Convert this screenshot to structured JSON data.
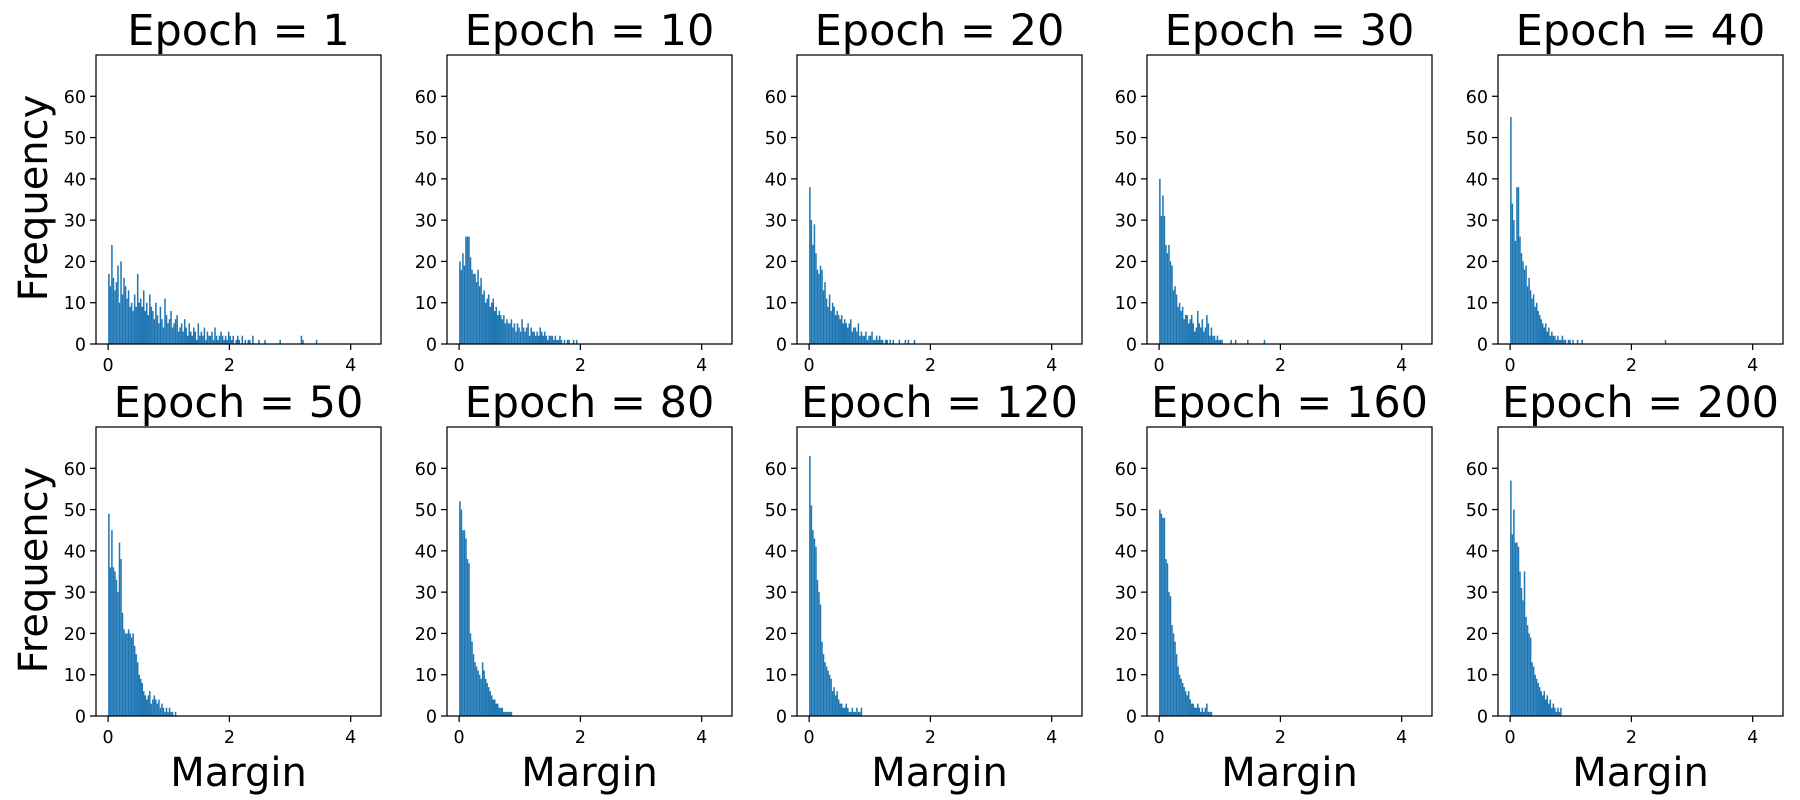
{
  "chart_data": {
    "type": "histogram-grid",
    "bar_color": "#1f77b4",
    "xlim": [
      -0.2,
      4.5
    ],
    "ylim": [
      0,
      70
    ],
    "xticks": [
      0,
      2,
      4
    ],
    "yticks": [
      0,
      10,
      20,
      30,
      40,
      50,
      60
    ],
    "ylabel": "Frequency",
    "xlabel": "Margin",
    "panels": [
      {
        "title": "Epoch = 1",
        "bins": {
          "start": 0.0,
          "width": 0.025
        },
        "values": [
          17,
          14,
          24,
          16,
          13,
          15,
          19,
          10,
          20,
          12,
          16,
          14,
          11,
          13,
          9,
          10,
          8,
          12,
          9,
          17,
          10,
          11,
          9,
          13,
          8,
          10,
          7,
          12,
          9,
          8,
          6,
          10,
          7,
          5,
          9,
          6,
          4,
          11,
          7,
          5,
          6,
          8,
          4,
          5,
          6,
          7,
          3,
          4,
          5,
          3,
          6,
          4,
          2,
          5,
          3,
          2,
          4,
          3,
          1,
          5,
          2,
          3,
          2,
          4,
          1,
          3,
          2,
          2,
          3,
          1,
          4,
          2,
          1,
          2,
          3,
          2,
          1,
          2,
          1,
          3,
          2,
          1,
          2,
          0,
          1,
          2,
          1,
          0,
          2,
          0,
          1,
          0,
          1,
          1,
          0,
          2,
          0,
          0,
          0,
          1,
          0,
          0,
          0,
          1,
          0,
          0,
          0,
          0,
          0,
          0,
          0,
          0,
          0,
          1,
          0,
          0,
          0,
          0,
          0,
          0,
          0,
          0,
          0,
          0,
          0,
          0,
          0,
          2,
          1,
          0,
          0,
          0,
          0,
          0,
          0,
          0,
          0,
          1,
          0,
          0,
          0
        ]
      },
      {
        "title": "Epoch = 10",
        "bins": {
          "start": 0.0,
          "width": 0.025
        },
        "values": [
          20,
          18,
          22,
          19,
          26,
          26,
          26,
          21,
          18,
          17,
          17,
          15,
          18,
          14,
          16,
          12,
          13,
          10,
          11,
          12,
          9,
          10,
          11,
          8,
          9,
          7,
          8,
          7,
          6,
          7,
          5,
          6,
          5,
          5,
          6,
          4,
          5,
          3,
          5,
          4,
          3,
          6,
          4,
          3,
          4,
          5,
          2,
          4,
          3,
          3,
          2,
          3,
          2,
          4,
          3,
          2,
          3,
          2,
          1,
          2,
          2,
          2,
          1,
          2,
          1,
          1,
          2,
          1,
          0,
          1,
          0,
          1,
          1,
          0,
          0,
          1,
          0,
          1
        ]
      },
      {
        "title": "Epoch = 20",
        "bins": {
          "start": 0.0,
          "width": 0.025
        },
        "values": [
          38,
          30,
          24,
          29,
          22,
          18,
          17,
          19,
          18,
          13,
          15,
          11,
          9,
          12,
          8,
          10,
          9,
          7,
          8,
          7,
          6,
          7,
          5,
          6,
          5,
          4,
          5,
          6,
          3,
          4,
          4,
          3,
          5,
          2,
          3,
          2,
          2,
          3,
          1,
          2,
          2,
          3,
          1,
          1,
          2,
          1,
          2,
          1,
          1,
          0,
          1,
          1,
          0,
          1,
          0,
          1,
          0,
          0,
          0,
          1,
          0,
          0,
          0,
          1,
          0,
          1,
          0,
          0,
          0,
          1
        ]
      },
      {
        "title": "Epoch = 30",
        "bins": {
          "start": 0.0,
          "width": 0.025
        },
        "values": [
          40,
          31,
          36,
          31,
          24,
          22,
          24,
          20,
          19,
          13,
          14,
          12,
          9,
          10,
          8,
          9,
          6,
          7,
          7,
          5,
          6,
          7,
          5,
          3,
          4,
          8,
          5,
          4,
          6,
          3,
          4,
          7,
          5,
          2,
          4,
          2,
          2,
          1,
          2,
          1,
          1,
          1,
          0,
          0,
          0,
          0,
          0,
          1,
          0,
          0,
          1,
          0,
          0,
          0,
          0,
          0,
          0,
          0,
          1,
          0,
          0,
          0,
          0,
          0,
          0,
          0,
          0,
          0,
          0,
          1
        ]
      },
      {
        "title": "Epoch = 40",
        "bins": {
          "start": 0.0,
          "width": 0.025
        },
        "values": [
          55,
          34,
          30,
          25,
          38,
          38,
          26,
          22,
          20,
          18,
          19,
          14,
          16,
          13,
          11,
          12,
          9,
          10,
          8,
          7,
          6,
          5,
          4,
          5,
          3,
          4,
          2,
          3,
          2,
          2,
          1,
          2,
          1,
          1,
          2,
          1,
          1,
          0,
          1,
          1,
          0,
          1,
          0,
          0,
          1,
          0,
          0,
          1,
          0,
          0,
          0,
          0,
          0,
          0,
          0,
          0,
          0,
          0,
          0,
          0,
          0,
          0,
          0,
          0,
          0,
          0,
          0,
          0,
          0,
          0,
          0,
          0,
          0,
          0,
          0,
          0,
          0,
          0,
          0,
          0,
          0,
          0,
          0,
          0,
          0,
          0,
          0,
          0,
          0,
          0,
          0,
          0,
          0,
          0,
          0,
          0,
          0,
          0,
          0,
          0,
          0,
          0,
          1
        ]
      },
      {
        "title": "Epoch = 50",
        "bins": {
          "start": 0.0,
          "width": 0.025
        },
        "values": [
          49,
          36,
          45,
          36,
          35,
          33,
          30,
          42,
          38,
          25,
          21,
          20,
          20,
          21,
          20,
          19,
          20,
          17,
          15,
          13,
          10,
          9,
          8,
          6,
          5,
          4,
          5,
          6,
          3,
          4,
          5,
          4,
          3,
          4,
          2,
          3,
          2,
          1,
          2,
          1,
          2,
          1,
          1,
          0,
          1
        ]
      },
      {
        "title": "Epoch = 80",
        "bins": {
          "start": 0.0,
          "width": 0.025
        },
        "values": [
          52,
          50,
          45,
          45,
          43,
          38,
          37,
          20,
          18,
          15,
          13,
          12,
          11,
          10,
          9,
          13,
          11,
          9,
          8,
          7,
          6,
          5,
          4,
          4,
          3,
          3,
          2,
          2,
          2,
          1,
          1,
          1,
          1,
          1,
          1
        ]
      },
      {
        "title": "Epoch = 120",
        "bins": {
          "start": 0.0,
          "width": 0.025
        },
        "values": [
          63,
          51,
          45,
          43,
          41,
          33,
          30,
          27,
          18,
          15,
          13,
          12,
          11,
          10,
          9,
          6,
          7,
          5,
          6,
          4,
          3,
          3,
          2,
          2,
          3,
          2,
          1,
          1,
          2,
          1,
          1,
          2,
          1,
          1,
          2
        ]
      },
      {
        "title": "Epoch = 160",
        "bins": {
          "start": 0.0,
          "width": 0.025
        },
        "values": [
          50,
          49,
          48,
          48,
          38,
          37,
          30,
          29,
          22,
          20,
          18,
          15,
          12,
          10,
          9,
          8,
          7,
          6,
          5,
          6,
          4,
          3,
          3,
          2,
          2,
          3,
          2,
          1,
          2,
          1,
          2,
          3,
          1,
          1,
          1
        ]
      },
      {
        "title": "Epoch = 200",
        "bins": {
          "start": 0.0,
          "width": 0.025
        },
        "values": [
          57,
          44,
          50,
          42,
          42,
          41,
          35,
          31,
          28,
          35,
          24,
          22,
          20,
          19,
          13,
          12,
          10,
          9,
          8,
          7,
          6,
          5,
          6,
          4,
          5,
          3,
          4,
          2,
          3,
          2,
          1,
          2,
          1,
          2
        ]
      }
    ]
  }
}
